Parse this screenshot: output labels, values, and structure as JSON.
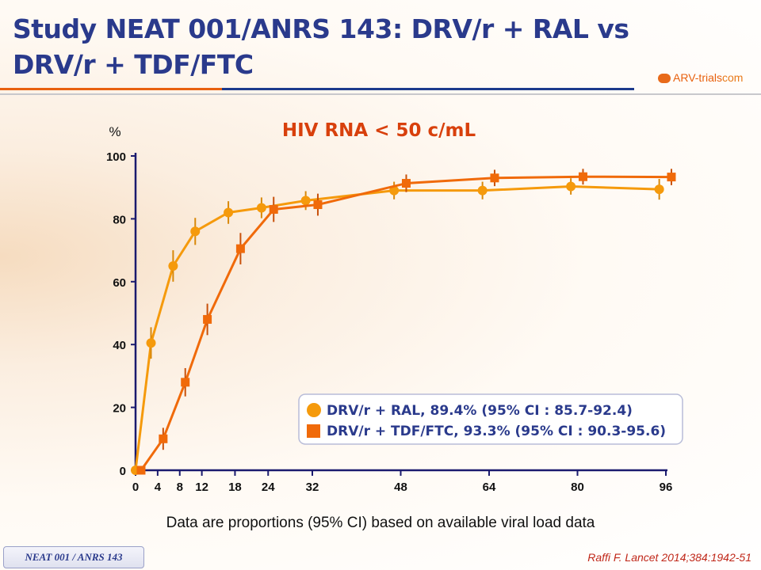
{
  "title": "Study NEAT 001/ANRS 143: DRV/r + RAL vs DRV/r + TDF/FTC",
  "logo": {
    "text": "ARV-trials",
    "suffix": "com"
  },
  "chart_data": {
    "type": "line",
    "title": "HIV RNA < 50 c/mL",
    "ylabel": "%",
    "xlabel": "",
    "ylim": [
      0,
      100
    ],
    "xlim": [
      0,
      96
    ],
    "yticks": [
      0,
      20,
      40,
      60,
      80,
      100
    ],
    "xticks": [
      0,
      4,
      8,
      12,
      18,
      24,
      32,
      48,
      64,
      80,
      96
    ],
    "legend_position": "bottom-right",
    "series": [
      {
        "name": "DRV/r + RAL, 89.4% (95% CI : 85.7-92.4)",
        "marker": "circle",
        "color": "#f59a0c",
        "x": [
          0,
          4,
          8,
          12,
          18,
          24,
          32,
          48,
          64,
          80,
          96
        ],
        "values": [
          0,
          40.5,
          65,
          76,
          82,
          83.5,
          85.8,
          89,
          89,
          90.3,
          89.4
        ],
        "ci": [
          0,
          5,
          5,
          4.3,
          3.6,
          3.3,
          3,
          2.8,
          2.8,
          2.6,
          3.3
        ]
      },
      {
        "name": "DRV/r + TDF/FTC, 93.3% (95% CI : 90.3-95.6)",
        "marker": "square",
        "color": "#f06a0a",
        "x": [
          0,
          4,
          8,
          12,
          18,
          24,
          32,
          48,
          64,
          80,
          96
        ],
        "values": [
          0,
          10,
          28,
          48,
          70.5,
          83,
          84.5,
          91.3,
          93,
          93.4,
          93.3
        ],
        "ci": [
          0,
          3.5,
          4.5,
          5,
          5,
          4,
          3.5,
          2.8,
          2.6,
          2.5,
          2.6
        ]
      }
    ]
  },
  "footnote": "Data are proportions (95% CI) based on available viral load data",
  "badge": "NEAT 001 / ANRS 143",
  "reference": "Raffi F. Lancet 2014;384:1942-51"
}
